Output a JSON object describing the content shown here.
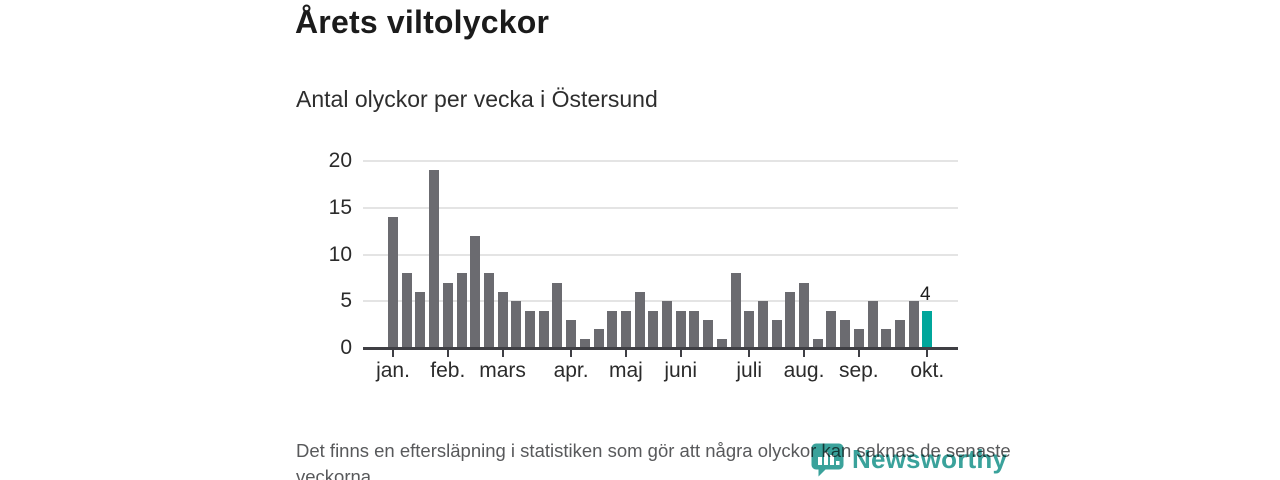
{
  "title": "Årets viltolyckor",
  "subtitle": "Antal olyckor per vecka i Östersund",
  "footnote": "Det finns en eftersläpning i statistiken som gör att några olyckor kan saknas de senaste veckorna.",
  "logo": {
    "text": "Newsworthy"
  },
  "colors": {
    "bar": "#6b6b70",
    "highlight": "#00a69b",
    "gridline": "#e4e4e4",
    "axis": "#3f3f44",
    "logo": "#3aa29b"
  },
  "chart_data": {
    "type": "bar",
    "title": "Årets viltolyckor",
    "subtitle": "Antal olyckor per vecka i Östersund",
    "xlabel": "vecka",
    "ylabel": "Antal olyckor",
    "x": [
      1,
      2,
      3,
      4,
      5,
      6,
      7,
      8,
      9,
      10,
      11,
      12,
      13,
      14,
      15,
      16,
      17,
      18,
      19,
      20,
      21,
      22,
      23,
      24,
      25,
      26,
      27,
      28,
      29,
      30,
      31,
      32,
      33,
      34,
      35,
      36,
      37,
      38,
      39,
      40
    ],
    "values": [
      14,
      8,
      6,
      19,
      7,
      8,
      12,
      8,
      6,
      5,
      4,
      4,
      7,
      3,
      1,
      2,
      4,
      4,
      6,
      4,
      5,
      4,
      4,
      3,
      1,
      8,
      4,
      5,
      3,
      6,
      7,
      1,
      4,
      3,
      2,
      5,
      2,
      3,
      5,
      4
    ],
    "highlight_index": 39,
    "highlight_label": "4",
    "y_ticks": [
      0,
      5,
      10,
      15,
      20
    ],
    "ylim": [
      0,
      20
    ],
    "grid": true,
    "legend": false,
    "months": [
      {
        "label": "jan.",
        "week": 1
      },
      {
        "label": "feb.",
        "week": 5
      },
      {
        "label": "mars",
        "week": 9
      },
      {
        "label": "apr.",
        "week": 14
      },
      {
        "label": "maj",
        "week": 18
      },
      {
        "label": "juni",
        "week": 22
      },
      {
        "label": "juli",
        "week": 27
      },
      {
        "label": "aug.",
        "week": 31
      },
      {
        "label": "sep.",
        "week": 35
      },
      {
        "label": "okt.",
        "week": 40
      }
    ]
  }
}
